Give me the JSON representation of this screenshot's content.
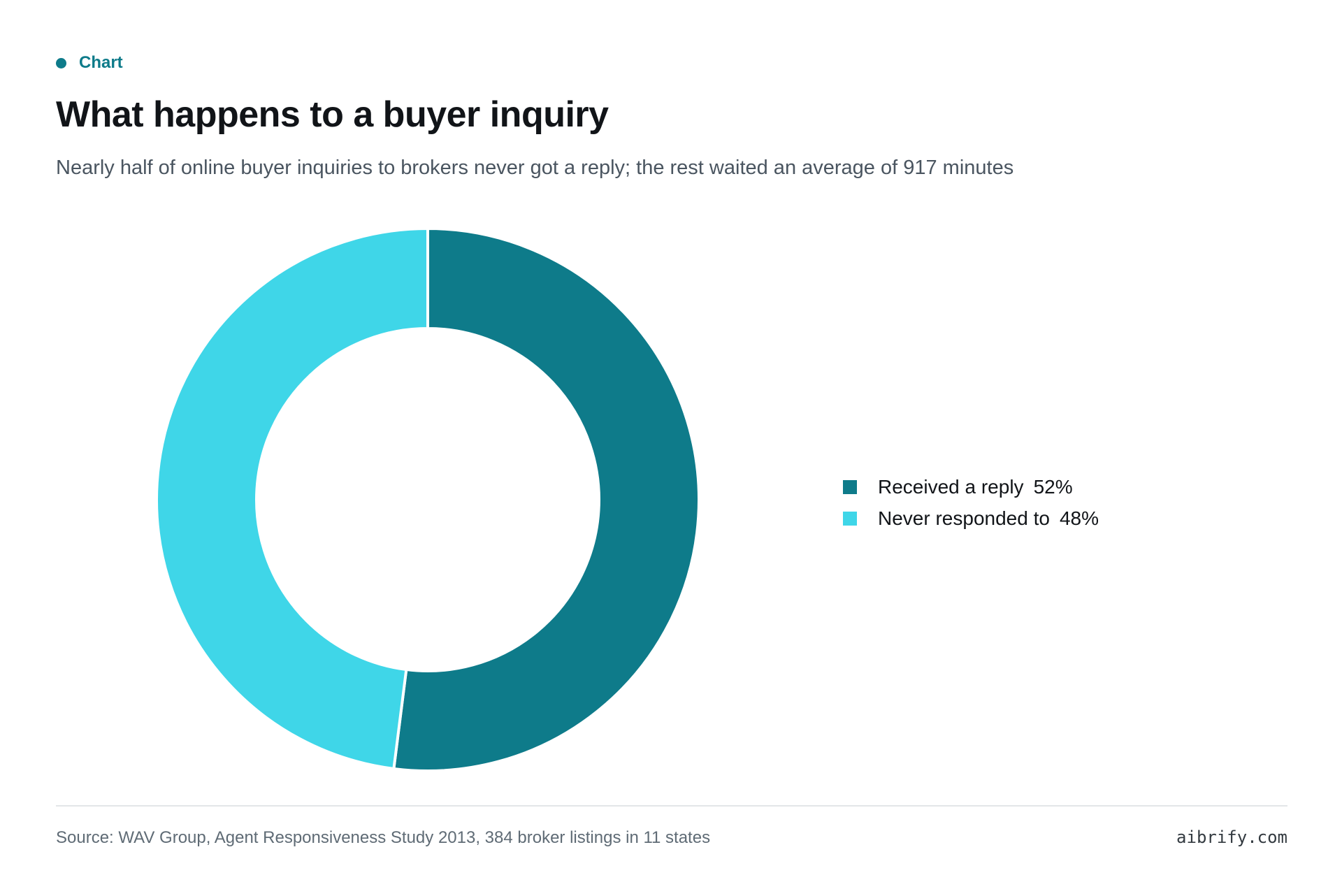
{
  "eyebrow": "Chart",
  "title": "What happens to a buyer inquiry",
  "subtitle": "Nearly half of online buyer inquiries to brokers never got a reply; the rest waited an average of 917 minutes",
  "source": "Source: WAV Group, Agent Responsiveness Study 2013, 384 broker listings in 11 states",
  "brand": "aibrify.com",
  "colors": {
    "accent": "#0e7b8a",
    "slice_reply": "#0e7b8a",
    "slice_never": "#3fd6e8"
  },
  "chart_data": {
    "type": "pie",
    "variant": "donut",
    "title": "What happens to a buyer inquiry",
    "categories": [
      "Received a reply",
      "Never responded to"
    ],
    "values": [
      52,
      48
    ],
    "unit": "%",
    "labels": [
      "52%",
      "48%"
    ],
    "colors": [
      "#0e7b8a",
      "#3fd6e8"
    ],
    "start_angle": "top",
    "direction": "clockwise",
    "legend_placement": "right"
  }
}
